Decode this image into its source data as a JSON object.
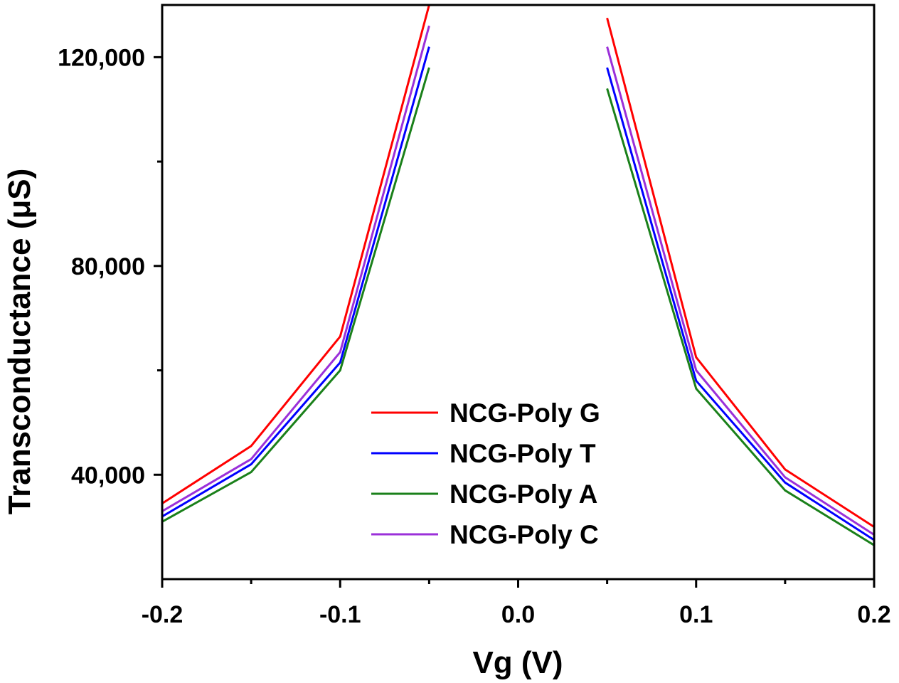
{
  "chart_data": {
    "type": "line",
    "xlabel": "Vg (V)",
    "ylabel": "Transconductance (μS)",
    "xlim": [
      -0.2,
      0.2
    ],
    "ylim": [
      20000,
      130000
    ],
    "x_ticks": [
      -0.2,
      -0.1,
      0.0,
      0.1,
      0.2
    ],
    "x_tick_labels": [
      "-0.2",
      "-0.1",
      "0.0",
      "0.1",
      "0.2"
    ],
    "x_minor_ticks": [
      -0.15,
      -0.05,
      0.05,
      0.15
    ],
    "y_ticks": [
      40000,
      80000,
      120000
    ],
    "y_tick_labels": [
      "40,000",
      "80,000",
      "120,000"
    ],
    "y_minor_ticks": [
      60000,
      100000
    ],
    "grid": false,
    "legend_position": "bottom-center",
    "series": [
      {
        "name": "NCG-Poly G",
        "color": "#ff0000",
        "segments": [
          {
            "x": [
              -0.2,
              -0.15,
              -0.1,
              -0.05
            ],
            "y": [
              34500,
              45500,
              66500,
              130000
            ]
          },
          {
            "x": [
              0.05,
              0.1,
              0.15,
              0.2
            ],
            "y": [
              127500,
              62500,
              41000,
              30000
            ]
          }
        ]
      },
      {
        "name": "NCG-Poly T",
        "color": "#0000ff",
        "segments": [
          {
            "x": [
              -0.2,
              -0.15,
              -0.1,
              -0.05
            ],
            "y": [
              32000,
              42000,
              61500,
              122000
            ]
          },
          {
            "x": [
              0.05,
              0.1,
              0.15,
              0.2
            ],
            "y": [
              118000,
              58000,
              38500,
              27500
            ]
          }
        ]
      },
      {
        "name": "NCG-Poly A",
        "color": "#1a801a",
        "segments": [
          {
            "x": [
              -0.2,
              -0.15,
              -0.1,
              -0.05
            ],
            "y": [
              31000,
              40500,
              60000,
              118000
            ]
          },
          {
            "x": [
              0.05,
              0.1,
              0.15,
              0.2
            ],
            "y": [
              114000,
              56500,
              37000,
              26500
            ]
          }
        ]
      },
      {
        "name": "NCG-Poly C",
        "color": "#9b30d9",
        "segments": [
          {
            "x": [
              -0.2,
              -0.15,
              -0.1,
              -0.05
            ],
            "y": [
              33000,
              43000,
              63500,
              126000
            ]
          },
          {
            "x": [
              0.05,
              0.1,
              0.15,
              0.2
            ],
            "y": [
              122000,
              60000,
              39500,
              28500
            ]
          }
        ]
      }
    ]
  }
}
